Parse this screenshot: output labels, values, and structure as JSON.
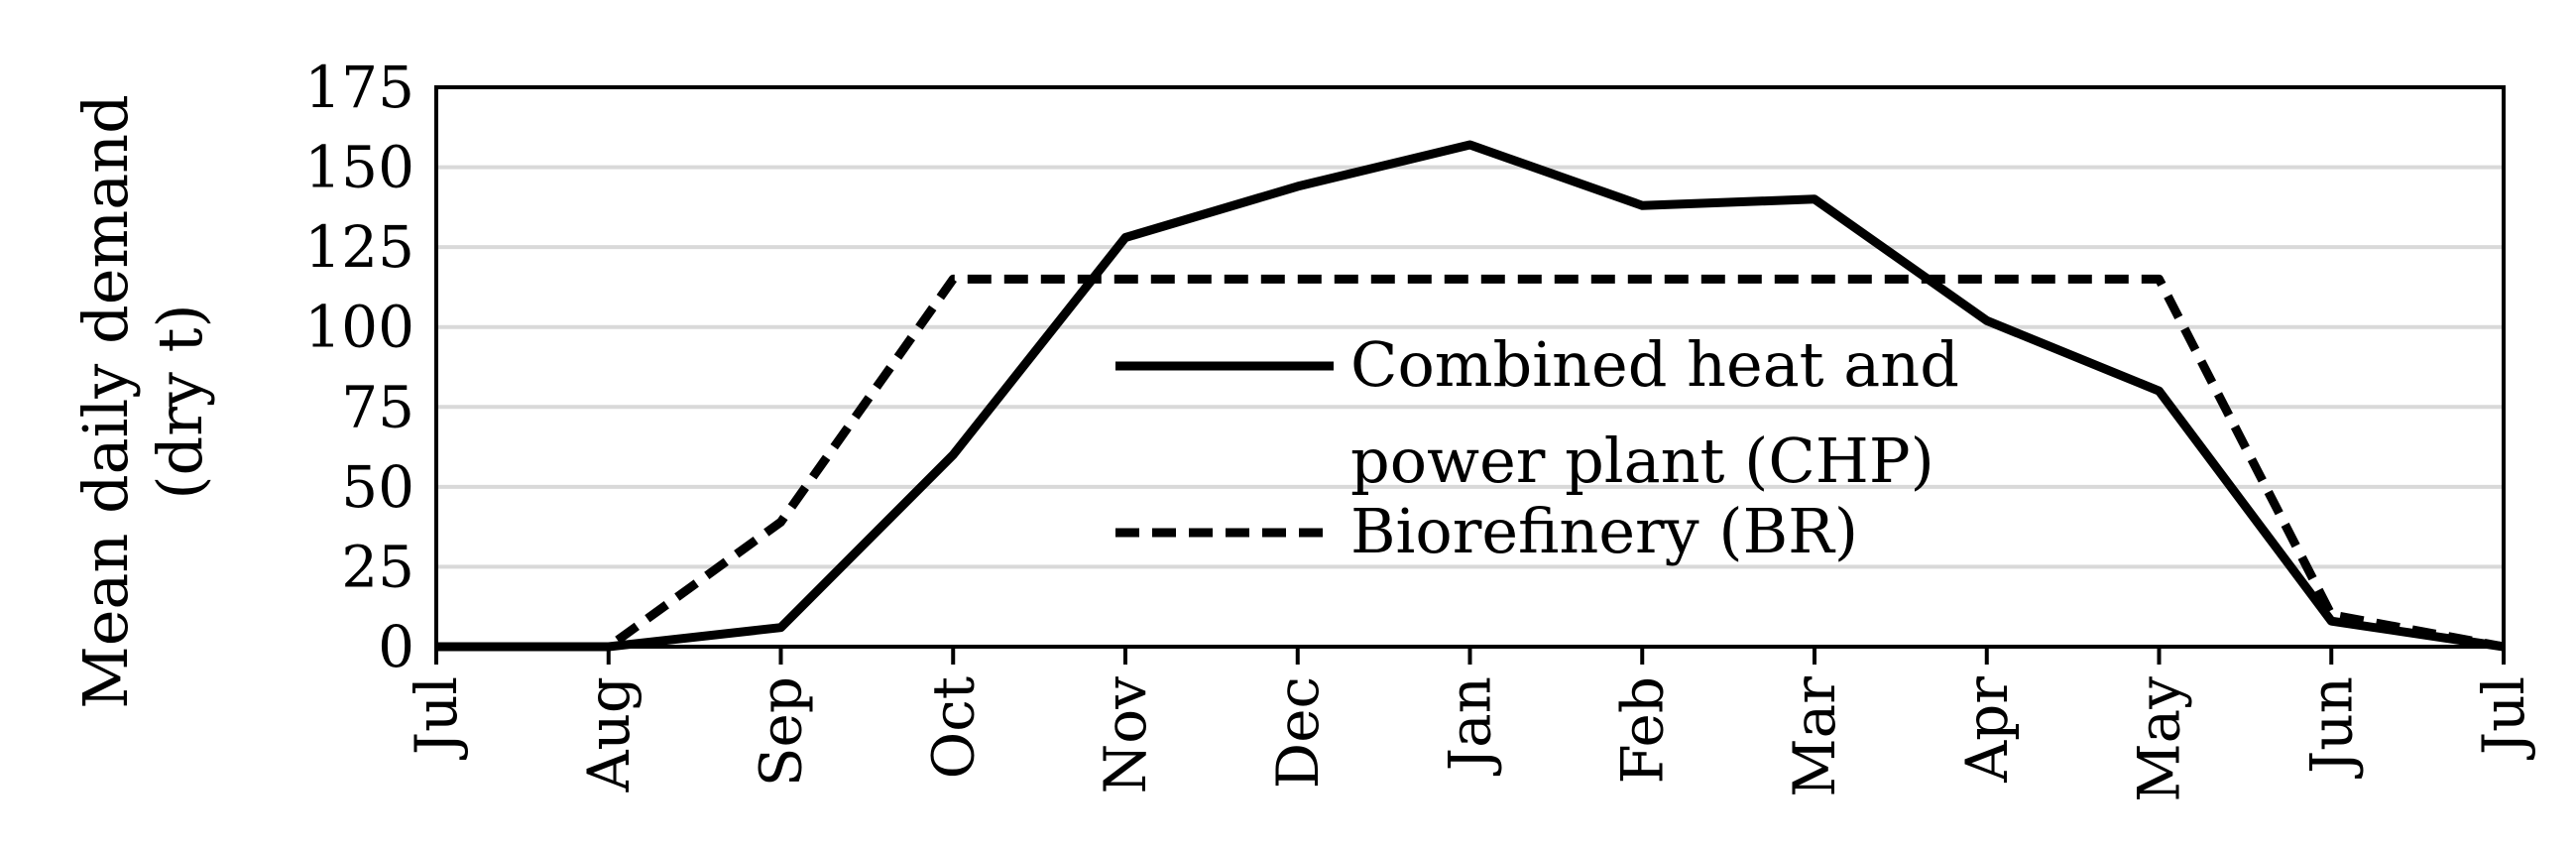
{
  "chart_data": {
    "type": "line",
    "title": "",
    "xlabel": "",
    "ylabel": [
      "Mean daily demand",
      "(dry t)"
    ],
    "x_categories": [
      "Jul",
      "Aug",
      "Sep",
      "Oct",
      "Nov",
      "Dec",
      "Jan",
      "Feb",
      "Mar",
      "Apr",
      "May",
      "Jun",
      "Jul"
    ],
    "y_ticks": [
      "0",
      "25",
      "50",
      "75",
      "100",
      "125",
      "150",
      "175"
    ],
    "ylim": [
      0,
      175
    ],
    "grid": "horizontal",
    "legend": {
      "placement": "center",
      "entries": [
        {
          "lines": [
            "Combined heat and",
            "power plant (CHP)"
          ],
          "style": "solid"
        },
        {
          "lines": [
            "Biorefinery (BR)"
          ],
          "style": "dashed"
        }
      ]
    },
    "series": [
      {
        "name": "Combined heat and power plant (CHP)",
        "style": "solid",
        "values": [
          0,
          0,
          6,
          60,
          128,
          144,
          157,
          138,
          140,
          102,
          80,
          8,
          0
        ]
      },
      {
        "name": "Biorefinery (BR)",
        "style": "dashed",
        "values": [
          0,
          0,
          39,
          115,
          115,
          115,
          115,
          115,
          115,
          115,
          115,
          10,
          0
        ]
      }
    ],
    "colors": {
      "line": "#000000",
      "grid": "#d9d9d9",
      "frame": "#000000"
    }
  }
}
